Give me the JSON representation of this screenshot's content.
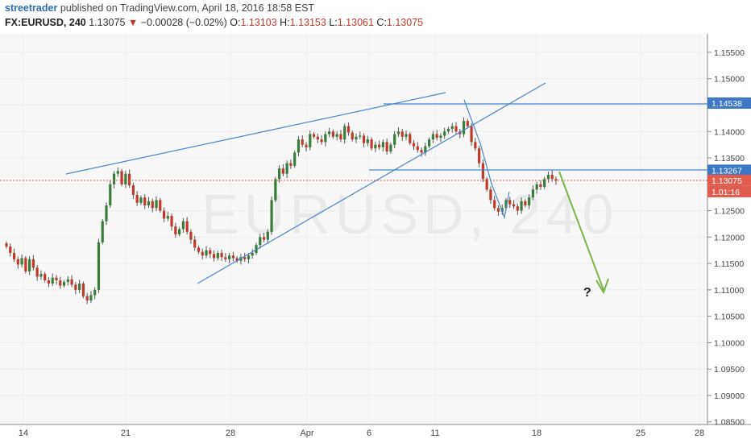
{
  "header": {
    "author": "streetrader",
    "published": "published on TradingView.com, April 18, 2016 18:58 EST",
    "symbol": "FX:EURUSD, 240",
    "last": "1.13075",
    "change": "−0.00028 (−0.02%)",
    "open_key": "O:",
    "open": "1.13103",
    "high_key": "H:",
    "high": "1.13153",
    "low_key": "L:",
    "low": "1.13061",
    "close_key": "C:",
    "close": "1.13075"
  },
  "colors": {
    "up": "#3a7d3a",
    "down": "#c0392b",
    "line": "#4a86c8",
    "arrow": "#7ab648",
    "price": "#e25c4e",
    "level": "#3d78c4"
  },
  "chart_data": {
    "type": "candlestick",
    "title": "",
    "x_ticks": [
      "14",
      "21",
      "28",
      "Apr",
      "6",
      "11",
      "18",
      "25",
      "28"
    ],
    "y_ticks": [
      "1.15500",
      "1.15000",
      "1.14500",
      "1.14000",
      "1.13500",
      "1.13000",
      "1.12500",
      "1.12000",
      "1.11500",
      "1.11000",
      "1.10500",
      "1.10000",
      "1.09500",
      "1.09000",
      "1.08500"
    ],
    "ylim": [
      1.0845,
      1.1585
    ],
    "price_tags": [
      {
        "label": "1.14538",
        "value": 1.14538,
        "style": "level"
      },
      {
        "label": "1.13267",
        "value": 1.13267,
        "style": "level"
      },
      {
        "label": "1.13075",
        "value": 1.13075,
        "style": "price"
      },
      {
        "label": "1.01:16",
        "value": 1.1286,
        "style": "price"
      }
    ],
    "annotations": [
      "?"
    ],
    "closes": [
      1.1182,
      1.117,
      1.1158,
      1.1148,
      1.116,
      1.1135,
      1.1158,
      1.1142,
      1.1125,
      1.113,
      1.1118,
      1.1112,
      1.1123,
      1.1118,
      1.1108,
      1.1115,
      1.112,
      1.111,
      1.11,
      1.1112,
      1.1088,
      1.108,
      1.109,
      1.11,
      1.119,
      1.123,
      1.126,
      1.13,
      1.132,
      1.1325,
      1.13,
      1.132,
      1.1298,
      1.128,
      1.1265,
      1.1275,
      1.126,
      1.1268,
      1.1255,
      1.127,
      1.125,
      1.1235,
      1.124,
      1.122,
      1.1205,
      1.1215,
      1.123,
      1.121,
      1.1195,
      1.118,
      1.1172,
      1.1165,
      1.1175,
      1.1168,
      1.116,
      1.117,
      1.1162,
      1.1158,
      1.1165,
      1.116,
      1.1155,
      1.1162,
      1.1158,
      1.1165,
      1.117,
      1.1185,
      1.12,
      1.1195,
      1.121,
      1.127,
      1.131,
      1.133,
      1.132,
      1.134,
      1.1335,
      1.136,
      1.1385,
      1.1375,
      1.137,
      1.1395,
      1.139,
      1.1385,
      1.138,
      1.1395,
      1.14,
      1.139,
      1.1395,
      1.1385,
      1.141,
      1.1398,
      1.1385,
      1.139,
      1.1392,
      1.1378,
      1.1385,
      1.1368,
      1.1375,
      1.137,
      1.138,
      1.1362,
      1.1375,
      1.1395,
      1.14,
      1.139,
      1.1395,
      1.1378,
      1.1372,
      1.1365,
      1.136,
      1.1372,
      1.1385,
      1.1395,
      1.1388,
      1.1392,
      1.14,
      1.1405,
      1.141,
      1.14,
      1.1395,
      1.142,
      1.141,
      1.138,
      1.1368,
      1.134,
      1.131,
      1.129,
      1.127,
      1.1255,
      1.1248,
      1.1255,
      1.127,
      1.1262,
      1.1258,
      1.125,
      1.1268,
      1.126,
      1.1275,
      1.129,
      1.13,
      1.1295,
      1.131,
      1.1318,
      1.131,
      1.1307
    ]
  }
}
